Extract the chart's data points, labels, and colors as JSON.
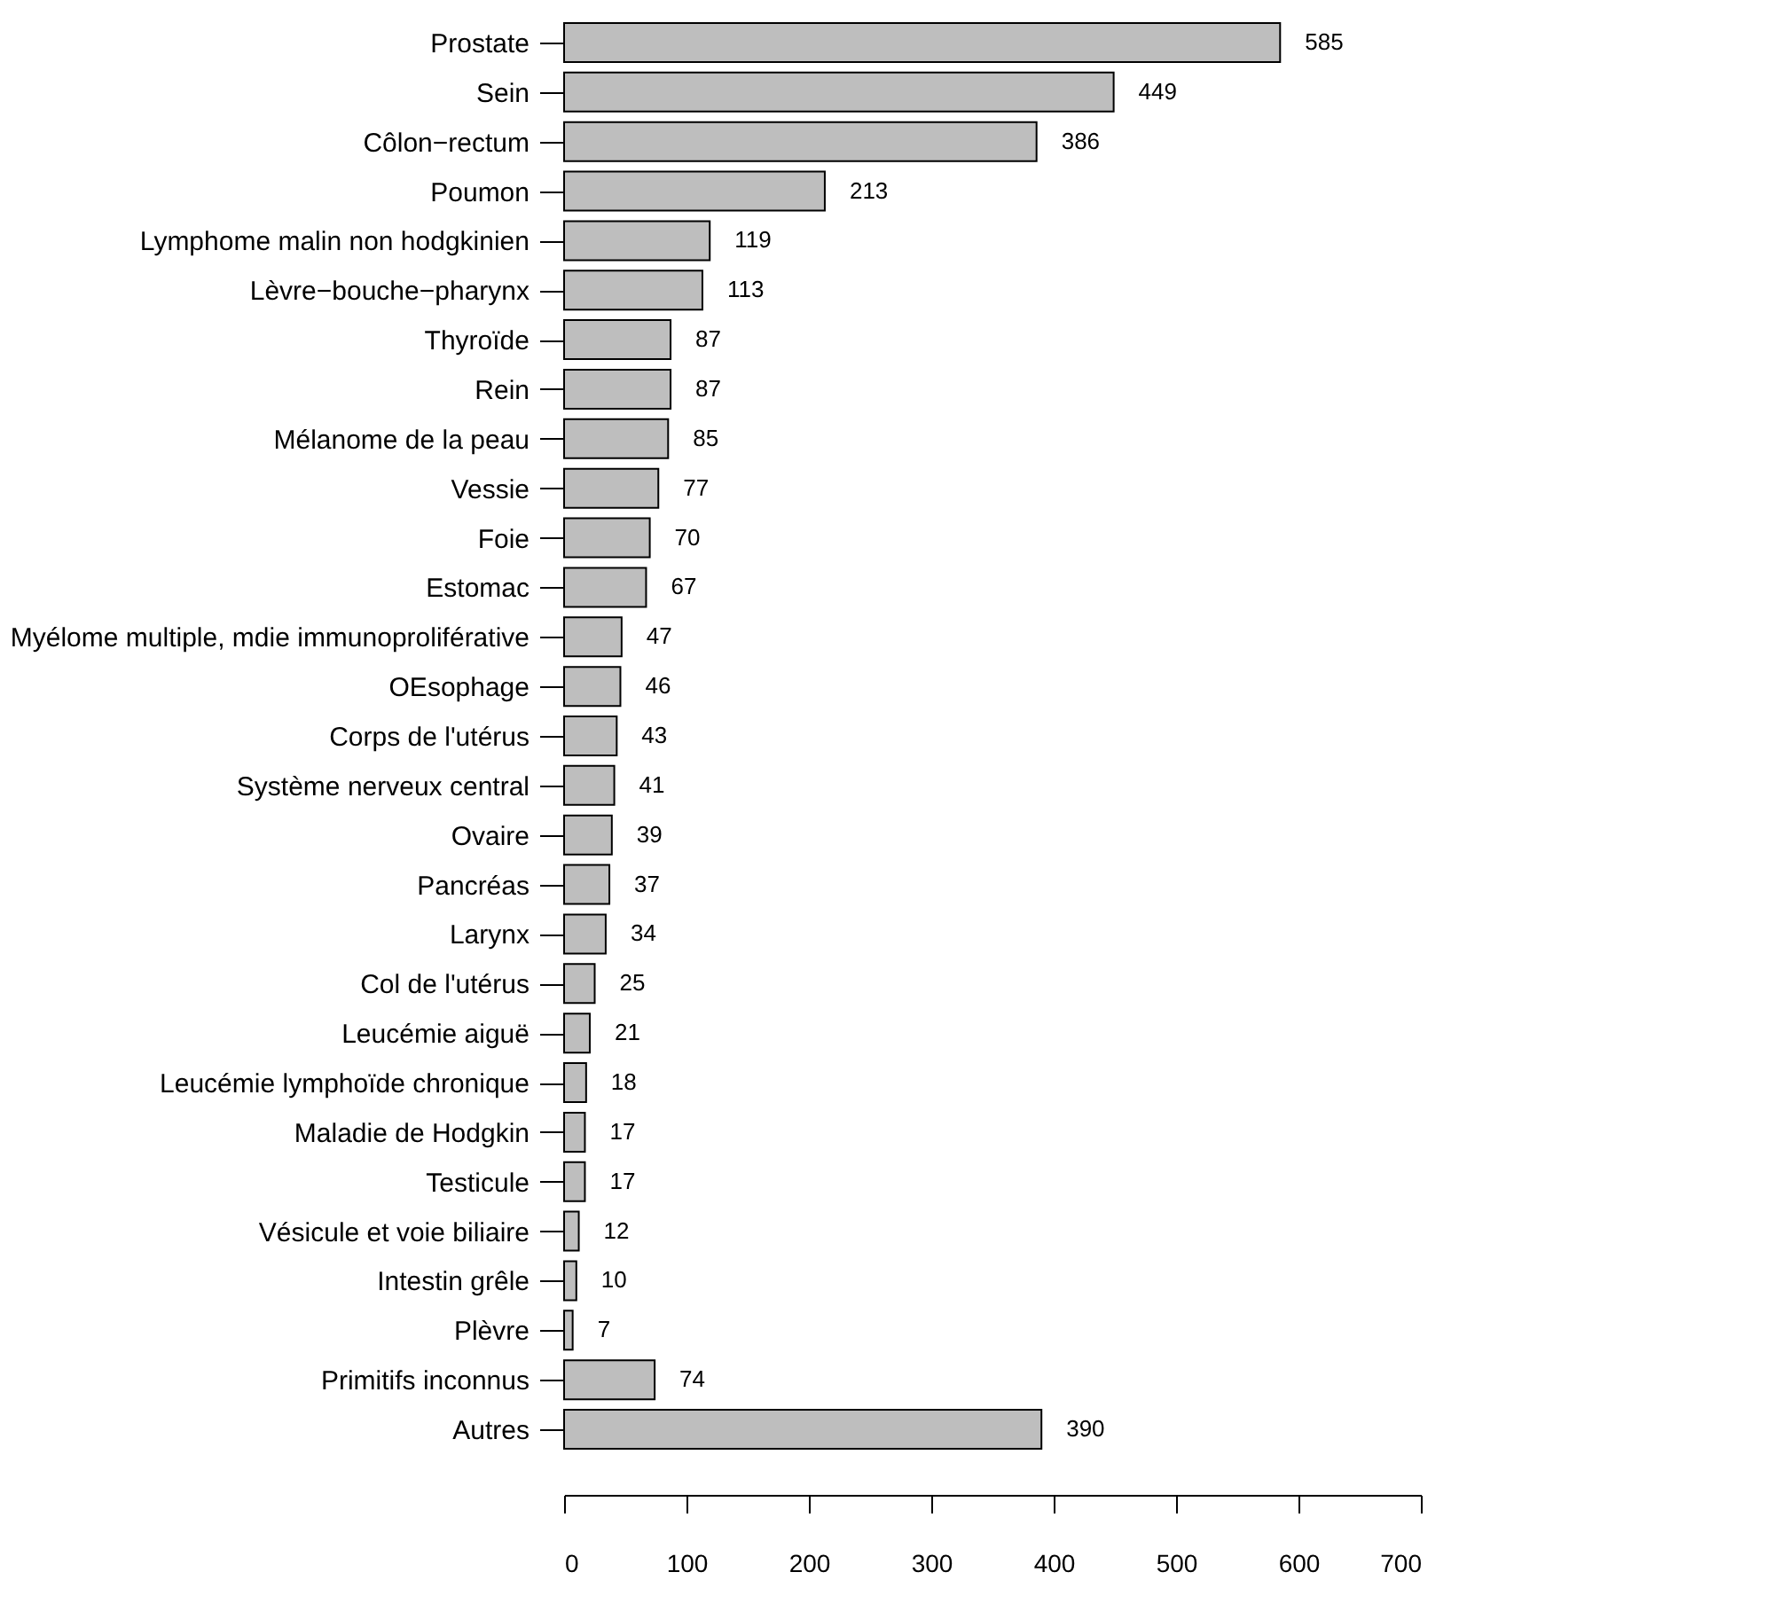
{
  "chart_data": {
    "type": "bar",
    "orientation": "horizontal",
    "categories": [
      "Prostate",
      "Sein",
      "Côlon−rectum",
      "Poumon",
      "Lymphome malin non hodgkinien",
      "Lèvre−bouche−pharynx",
      "Thyroïde",
      "Rein",
      "Mélanome de la peau",
      "Vessie",
      "Foie",
      "Estomac",
      "Myélome multiple, mdie immunoproliférative",
      "OEsophage",
      "Corps de l'utérus",
      "Système nerveux central",
      "Ovaire",
      "Pancréas",
      "Larynx",
      "Col de l'utérus",
      "Leucémie aiguë",
      "Leucémie lymphoïde chronique",
      "Maladie de Hodgkin",
      "Testicule",
      "Vésicule et voie biliaire",
      "Intestin grêle",
      "Plèvre",
      "Primitifs inconnus",
      "Autres"
    ],
    "values": [
      585,
      449,
      386,
      213,
      119,
      113,
      87,
      87,
      85,
      77,
      70,
      67,
      47,
      46,
      43,
      41,
      39,
      37,
      34,
      25,
      21,
      18,
      17,
      17,
      12,
      10,
      7,
      74,
      390
    ],
    "color": "#bebebe",
    "xlim": [
      0,
      700
    ],
    "xticks": [
      0,
      100,
      200,
      300,
      400,
      500,
      600,
      700
    ],
    "data_labels": true,
    "grid": false,
    "legend": false
  }
}
